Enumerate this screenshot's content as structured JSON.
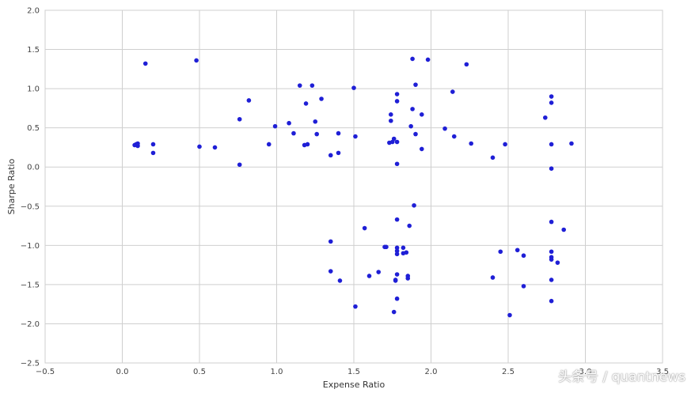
{
  "chart_data": {
    "type": "scatter",
    "xlabel": "Expense Ratio",
    "ylabel": "Sharpe Ratio",
    "xlim": [
      -0.5,
      3.5
    ],
    "ylim": [
      -2.5,
      2.0
    ],
    "xticks": [
      "−0.5",
      "0.0",
      "0.5",
      "1.0",
      "1.5",
      "2.0",
      "2.5",
      "3.0",
      "3.5"
    ],
    "xtick_values": [
      -0.5,
      0.0,
      0.5,
      1.0,
      1.5,
      2.0,
      2.5,
      3.0,
      3.5
    ],
    "yticks": [
      "2.0",
      "1.5",
      "1.0",
      "0.5",
      "0.0",
      "−0.5",
      "−1.0",
      "−1.5",
      "−2.0",
      "−2.5"
    ],
    "ytick_values": [
      2.0,
      1.5,
      1.0,
      0.5,
      0.0,
      -0.5,
      -1.0,
      -1.5,
      -2.0,
      -2.5
    ],
    "grid": true,
    "color": "#1f1fd6",
    "points": [
      {
        "x": 0.08,
        "y": 0.28
      },
      {
        "x": 0.09,
        "y": 0.29
      },
      {
        "x": 0.1,
        "y": 0.27
      },
      {
        "x": 0.1,
        "y": 0.3
      },
      {
        "x": 0.15,
        "y": 1.32
      },
      {
        "x": 0.2,
        "y": 0.29
      },
      {
        "x": 0.2,
        "y": 0.18
      },
      {
        "x": 0.48,
        "y": 1.36
      },
      {
        "x": 0.5,
        "y": 0.26
      },
      {
        "x": 0.6,
        "y": 0.25
      },
      {
        "x": 0.76,
        "y": 0.61
      },
      {
        "x": 0.76,
        "y": 0.03
      },
      {
        "x": 0.82,
        "y": 0.85
      },
      {
        "x": 0.95,
        "y": 0.29
      },
      {
        "x": 0.99,
        "y": 0.52
      },
      {
        "x": 1.08,
        "y": 0.56
      },
      {
        "x": 1.11,
        "y": 0.43
      },
      {
        "x": 1.15,
        "y": 1.04
      },
      {
        "x": 1.18,
        "y": 0.28
      },
      {
        "x": 1.19,
        "y": 0.81
      },
      {
        "x": 1.2,
        "y": 0.29
      },
      {
        "x": 1.23,
        "y": 1.04
      },
      {
        "x": 1.25,
        "y": 0.58
      },
      {
        "x": 1.26,
        "y": 0.42
      },
      {
        "x": 1.29,
        "y": 0.87
      },
      {
        "x": 1.35,
        "y": 0.15
      },
      {
        "x": 1.35,
        "y": -0.95
      },
      {
        "x": 1.35,
        "y": -1.33
      },
      {
        "x": 1.4,
        "y": 0.43
      },
      {
        "x": 1.4,
        "y": 0.18
      },
      {
        "x": 1.41,
        "y": -1.45
      },
      {
        "x": 1.5,
        "y": 1.01
      },
      {
        "x": 1.51,
        "y": 0.39
      },
      {
        "x": 1.51,
        "y": -1.78
      },
      {
        "x": 1.57,
        "y": -0.78
      },
      {
        "x": 1.6,
        "y": -1.39
      },
      {
        "x": 1.66,
        "y": -1.34
      },
      {
        "x": 1.7,
        "y": -1.02
      },
      {
        "x": 1.71,
        "y": -1.02
      },
      {
        "x": 1.73,
        "y": 0.31
      },
      {
        "x": 1.74,
        "y": 0.67
      },
      {
        "x": 1.74,
        "y": 0.59
      },
      {
        "x": 1.75,
        "y": 0.32
      },
      {
        "x": 1.76,
        "y": 0.36
      },
      {
        "x": 1.76,
        "y": -1.85
      },
      {
        "x": 1.77,
        "y": -1.45
      },
      {
        "x": 1.77,
        "y": -1.44
      },
      {
        "x": 1.78,
        "y": 0.93
      },
      {
        "x": 1.78,
        "y": 0.84
      },
      {
        "x": 1.78,
        "y": 0.32
      },
      {
        "x": 1.78,
        "y": 0.04
      },
      {
        "x": 1.78,
        "y": -0.67
      },
      {
        "x": 1.78,
        "y": -1.03
      },
      {
        "x": 1.78,
        "y": -1.07
      },
      {
        "x": 1.78,
        "y": -1.11
      },
      {
        "x": 1.78,
        "y": -1.37
      },
      {
        "x": 1.78,
        "y": -1.68
      },
      {
        "x": 1.82,
        "y": -1.03
      },
      {
        "x": 1.82,
        "y": -1.1
      },
      {
        "x": 1.84,
        "y": -1.09
      },
      {
        "x": 1.85,
        "y": -1.39
      },
      {
        "x": 1.85,
        "y": -1.42
      },
      {
        "x": 1.86,
        "y": -0.75
      },
      {
        "x": 1.87,
        "y": 0.52
      },
      {
        "x": 1.88,
        "y": 1.38
      },
      {
        "x": 1.88,
        "y": 0.74
      },
      {
        "x": 1.89,
        "y": -0.49
      },
      {
        "x": 1.9,
        "y": 1.05
      },
      {
        "x": 1.9,
        "y": 0.42
      },
      {
        "x": 1.94,
        "y": 0.67
      },
      {
        "x": 1.94,
        "y": 0.23
      },
      {
        "x": 1.98,
        "y": 1.37
      },
      {
        "x": 2.09,
        "y": 0.49
      },
      {
        "x": 2.14,
        "y": 0.96
      },
      {
        "x": 2.15,
        "y": 0.39
      },
      {
        "x": 2.23,
        "y": 1.31
      },
      {
        "x": 2.26,
        "y": 0.3
      },
      {
        "x": 2.4,
        "y": 0.12
      },
      {
        "x": 2.4,
        "y": -1.41
      },
      {
        "x": 2.45,
        "y": -1.08
      },
      {
        "x": 2.48,
        "y": 0.29
      },
      {
        "x": 2.51,
        "y": -1.89
      },
      {
        "x": 2.56,
        "y": -1.06
      },
      {
        "x": 2.6,
        "y": -1.13
      },
      {
        "x": 2.6,
        "y": -1.52
      },
      {
        "x": 2.74,
        "y": 0.63
      },
      {
        "x": 2.78,
        "y": 0.9
      },
      {
        "x": 2.78,
        "y": 0.82
      },
      {
        "x": 2.78,
        "y": 0.29
      },
      {
        "x": 2.78,
        "y": -0.02
      },
      {
        "x": 2.78,
        "y": -0.7
      },
      {
        "x": 2.78,
        "y": -1.08
      },
      {
        "x": 2.78,
        "y": -1.15
      },
      {
        "x": 2.78,
        "y": -1.18
      },
      {
        "x": 2.78,
        "y": -1.44
      },
      {
        "x": 2.78,
        "y": -1.71
      },
      {
        "x": 2.82,
        "y": -1.22
      },
      {
        "x": 2.86,
        "y": -0.8
      },
      {
        "x": 2.91,
        "y": 0.3
      }
    ]
  },
  "watermark": "头条号 / quantnews"
}
